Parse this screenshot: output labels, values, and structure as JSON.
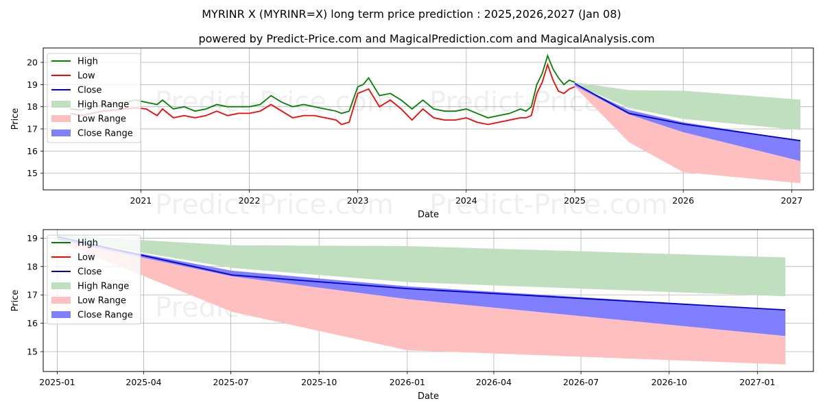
{
  "title": "MYRINR X (MYRINR=X) long term price prediction : 2025,2026,2027 (Jan 08)",
  "subtitle": "powered by Predict-Price.com and MagicalPrediction.com and MagicalAnalysis.com",
  "watermark": "Predict-Price.com",
  "colors": {
    "high": "#008000",
    "low": "#ff0000",
    "close": "#0000cc",
    "high_range": "#bfdfbf",
    "low_range": "#ffbfbf",
    "close_range": "#7f7fff",
    "grid": "#b0b0b0"
  },
  "legend": {
    "position": "top-left",
    "entries": [
      {
        "label": "High",
        "kind": "line",
        "color": "#008000"
      },
      {
        "label": "Low",
        "kind": "line",
        "color": "#ff0000"
      },
      {
        "label": "Close",
        "kind": "line",
        "color": "#0000cc"
      },
      {
        "label": "High Range",
        "kind": "patch",
        "color": "#bfdfbf"
      },
      {
        "label": "Low Range",
        "kind": "patch",
        "color": "#ffbfbf"
      },
      {
        "label": "Close Range",
        "kind": "patch",
        "color": "#7f7fff"
      }
    ]
  },
  "chart_data": [
    {
      "type": "line",
      "xlabel": "Date",
      "ylabel": "Price",
      "xlim": [
        2020.1,
        2027.2
      ],
      "ylim": [
        14.25,
        20.65
      ],
      "grid": true,
      "xticks": [
        {
          "value": 2021,
          "label": "2021"
        },
        {
          "value": 2022,
          "label": "2022"
        },
        {
          "value": 2023,
          "label": "2023"
        },
        {
          "value": 2024,
          "label": "2024"
        },
        {
          "value": 2025,
          "label": "2025"
        },
        {
          "value": 2026,
          "label": "2026"
        },
        {
          "value": 2027,
          "label": "2027"
        }
      ],
      "yticks": [
        15,
        16,
        17,
        18,
        19,
        20
      ],
      "history": {
        "x": [
          2020.35,
          2020.45,
          2020.55,
          2020.65,
          2020.75,
          2020.85,
          2020.95,
          2021.05,
          2021.15,
          2021.2,
          2021.3,
          2021.4,
          2021.5,
          2021.6,
          2021.7,
          2021.8,
          2021.9,
          2022.0,
          2022.1,
          2022.2,
          2022.3,
          2022.4,
          2022.5,
          2022.6,
          2022.7,
          2022.8,
          2022.85,
          2022.92,
          2023.0,
          2023.05,
          2023.1,
          2023.2,
          2023.3,
          2023.4,
          2023.5,
          2023.6,
          2023.7,
          2023.8,
          2023.9,
          2024.0,
          2024.1,
          2024.2,
          2024.3,
          2024.4,
          2024.5,
          2024.55,
          2024.6,
          2024.65,
          2024.7,
          2024.75,
          2024.8,
          2024.85,
          2024.9,
          2024.95,
          2025.0
        ],
        "high": [
          17.9,
          17.85,
          18.0,
          18.05,
          18.1,
          18.2,
          18.3,
          18.2,
          18.1,
          18.3,
          17.9,
          18.0,
          17.8,
          17.9,
          18.1,
          18.0,
          18.0,
          18.0,
          18.1,
          18.5,
          18.2,
          18.0,
          18.1,
          18.0,
          17.9,
          17.8,
          17.7,
          17.8,
          18.9,
          19.0,
          19.3,
          18.5,
          18.6,
          18.3,
          17.9,
          18.3,
          17.9,
          17.8,
          17.8,
          17.9,
          17.7,
          17.5,
          17.6,
          17.7,
          17.9,
          17.8,
          18.0,
          19.0,
          19.5,
          20.3,
          19.7,
          19.3,
          19.0,
          19.2,
          19.1
        ],
        "low": [
          17.7,
          17.6,
          17.7,
          17.8,
          17.85,
          17.9,
          17.95,
          17.9,
          17.6,
          17.9,
          17.5,
          17.6,
          17.5,
          17.6,
          17.8,
          17.6,
          17.7,
          17.7,
          17.8,
          18.1,
          17.8,
          17.5,
          17.6,
          17.6,
          17.5,
          17.4,
          17.2,
          17.3,
          18.6,
          18.7,
          18.8,
          18.0,
          18.3,
          17.9,
          17.4,
          17.9,
          17.5,
          17.4,
          17.4,
          17.5,
          17.3,
          17.2,
          17.3,
          17.4,
          17.5,
          17.5,
          17.6,
          18.6,
          19.1,
          19.9,
          19.2,
          18.7,
          18.6,
          18.8,
          18.9
        ]
      },
      "forecast": {
        "x": [
          2025.0,
          2025.5,
          2026.0,
          2027.08
        ],
        "close": [
          19.05,
          17.7,
          17.22,
          16.47
        ],
        "high_range": [
          [
            19.1,
            18.75,
            18.72,
            18.32
          ],
          [
            19.0,
            17.95,
            17.45,
            16.95
          ]
        ],
        "close_range": [
          [
            19.0,
            17.85,
            17.3,
            16.47
          ],
          [
            18.95,
            17.65,
            16.85,
            15.55
          ]
        ],
        "low_range": [
          [
            18.95,
            17.65,
            16.85,
            15.55
          ],
          [
            18.9,
            16.4,
            15.05,
            14.55
          ]
        ]
      }
    },
    {
      "type": "line",
      "xlabel": "Date",
      "ylabel": "Price",
      "xlim": [
        2024.96,
        2027.16
      ],
      "ylim": [
        14.3,
        19.3
      ],
      "grid": true,
      "xticks": [
        {
          "value": 2025.0,
          "label": "2025-01"
        },
        {
          "value": 2025.247,
          "label": "2025-04"
        },
        {
          "value": 2025.496,
          "label": "2025-07"
        },
        {
          "value": 2025.748,
          "label": "2025-10"
        },
        {
          "value": 2026.0,
          "label": "2026-01"
        },
        {
          "value": 2026.247,
          "label": "2026-04"
        },
        {
          "value": 2026.496,
          "label": "2026-07"
        },
        {
          "value": 2026.748,
          "label": "2026-10"
        },
        {
          "value": 2027.0,
          "label": "2027-01"
        }
      ],
      "yticks": [
        15,
        16,
        17,
        18,
        19
      ],
      "forecast": {
        "x": [
          2025.0,
          2025.5,
          2026.0,
          2027.08
        ],
        "close": [
          19.05,
          17.7,
          17.22,
          16.47
        ],
        "high_range": [
          [
            19.1,
            18.75,
            18.72,
            18.32
          ],
          [
            19.0,
            17.95,
            17.45,
            16.95
          ]
        ],
        "close_range": [
          [
            19.0,
            17.85,
            17.3,
            16.47
          ],
          [
            18.95,
            17.65,
            16.85,
            15.55
          ]
        ],
        "low_range": [
          [
            18.95,
            17.65,
            16.85,
            15.55
          ],
          [
            18.9,
            16.4,
            15.05,
            14.55
          ]
        ]
      }
    }
  ]
}
